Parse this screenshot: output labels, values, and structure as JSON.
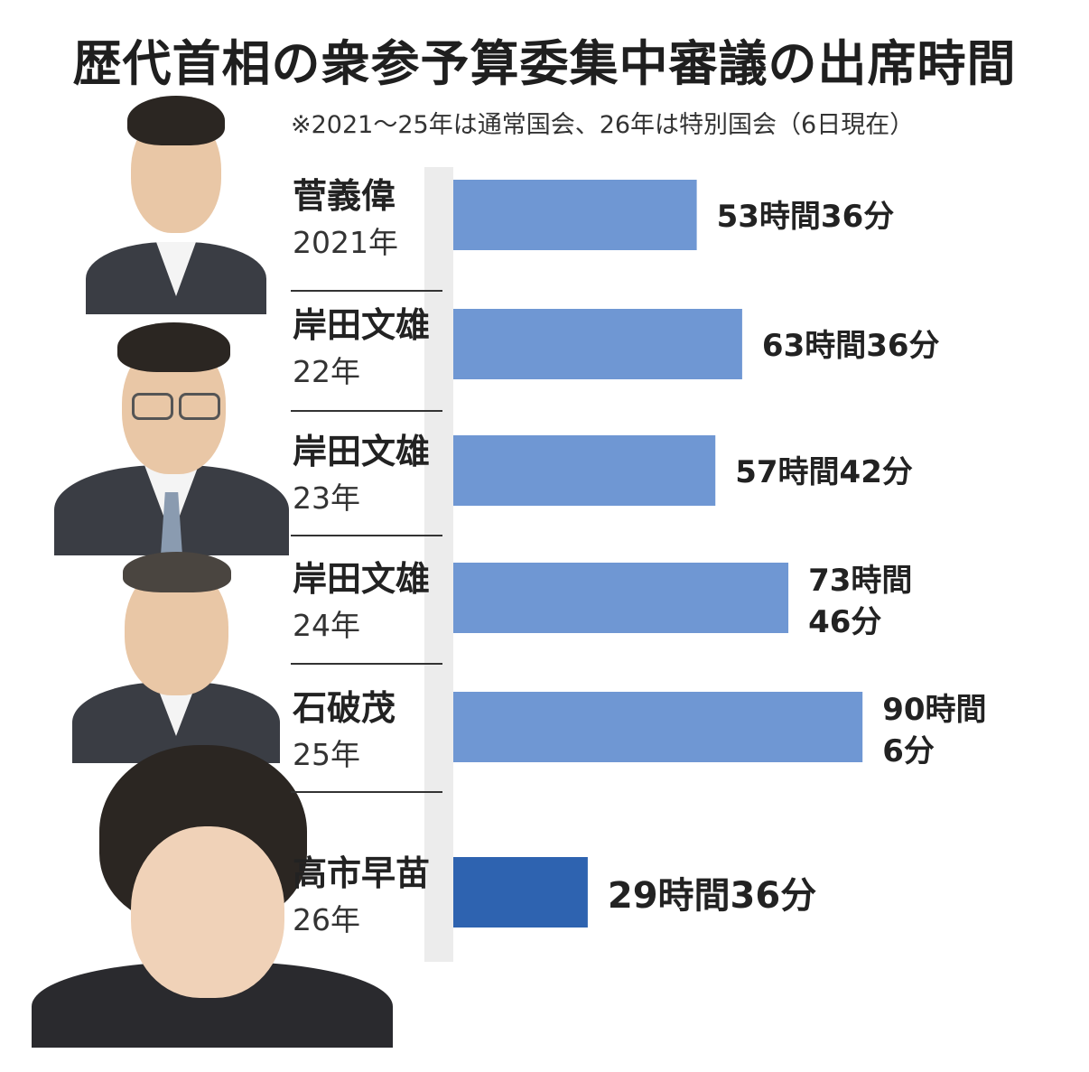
{
  "title": "歴代首相の衆参予算委集中審議の出席時間",
  "subtitle": "※2021～25年は通常国会、26年は特別国会（6日現在）",
  "colors": {
    "bar": "#6f97d3",
    "highlight_bar": "#2e63b0",
    "highlight_text": "#2e63b0",
    "separator": "#333333",
    "axis_shade": "#e6e6e6"
  },
  "portraits": [
    {
      "icon": "portrait-photo-suga"
    },
    {
      "icon": "portrait-photo-kishida"
    },
    {
      "icon": "portrait-photo-ishiba"
    },
    {
      "icon": "portrait-photo-takaichi"
    }
  ],
  "chart_data": {
    "type": "bar",
    "orientation": "horizontal",
    "categories": [
      "菅義偉 2021年",
      "岸田文雄 22年",
      "岸田文雄 23年",
      "岸田文雄 24年",
      "石破茂 25年",
      "高市早苗 26年"
    ],
    "names": [
      "菅義偉",
      "岸田文雄",
      "岸田文雄",
      "岸田文雄",
      "石破茂",
      "高市早苗"
    ],
    "years": [
      "2021年",
      "22年",
      "23年",
      "24年",
      "25年",
      "26年"
    ],
    "values": [
      53.6,
      63.6,
      57.7,
      73.77,
      90.1,
      29.6
    ],
    "value_labels": [
      [
        "53時間36分"
      ],
      [
        "63時間36分"
      ],
      [
        "57時間42分"
      ],
      [
        "73時間",
        "46分"
      ],
      [
        "90時間",
        "6分"
      ],
      [
        "29時間36分"
      ]
    ],
    "highlight_index": 5,
    "unit": "hours",
    "xlim": [
      0,
      100
    ],
    "grid": false,
    "legend": "none"
  }
}
